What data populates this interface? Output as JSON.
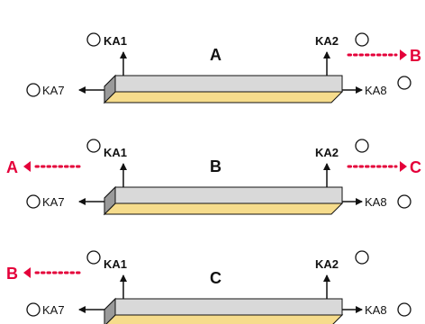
{
  "colors": {
    "accent_red": "#e4003a",
    "bar_gray": "#d9d9d9",
    "bar_yellow": "#f6dc8c",
    "bar_end_dark": "#888888",
    "line": "#111111"
  },
  "rows": [
    {
      "name": "A",
      "left_top_label": "KA1",
      "right_top_label": "KA2",
      "left_side_label": "KA7",
      "right_side_label": "KA8",
      "left_red": "",
      "right_red": "B"
    },
    {
      "name": "B",
      "left_top_label": "KA1",
      "right_top_label": "KA2",
      "left_side_label": "KA7",
      "right_side_label": "KA8",
      "left_red": "A",
      "right_red": "C"
    },
    {
      "name": "C",
      "left_top_label": "KA1",
      "right_top_label": "KA2",
      "left_side_label": "KA7",
      "right_side_label": "KA8",
      "left_red": "B",
      "right_red": ""
    }
  ]
}
